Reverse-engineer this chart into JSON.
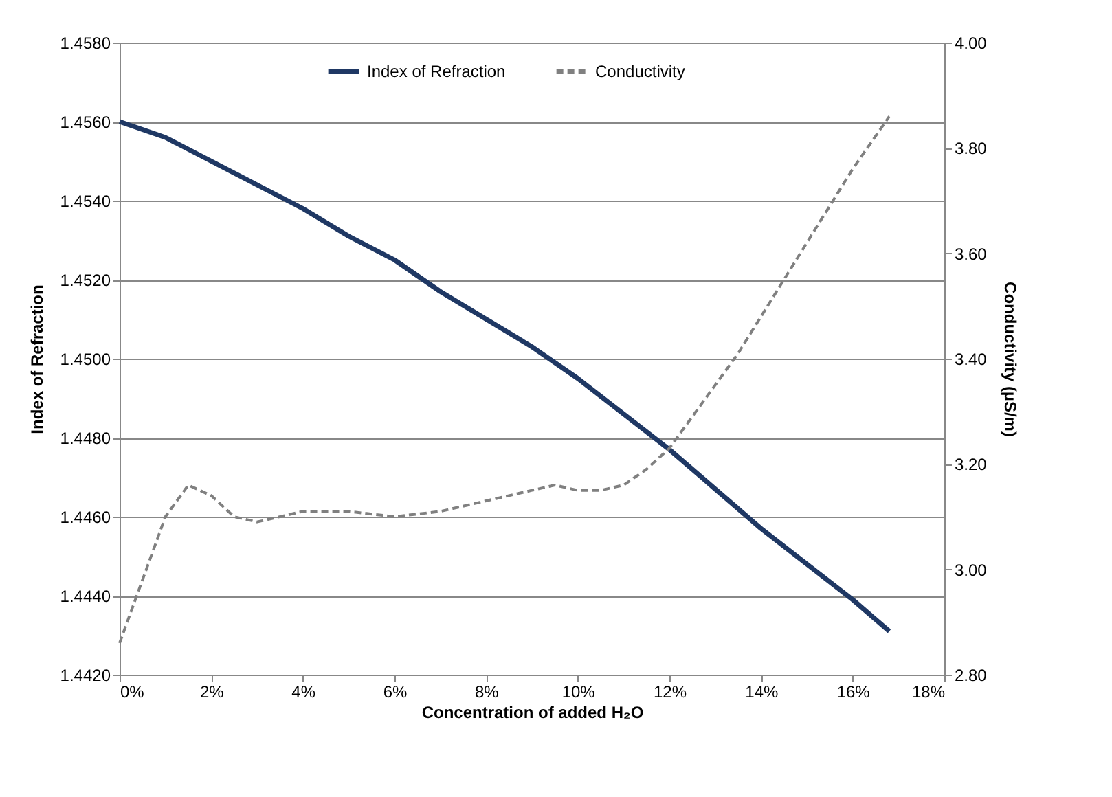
{
  "chart_data": {
    "type": "line",
    "xlabel": "Concentration of added H₂O",
    "ylabel": "Index of Refraction",
    "y2label": "Conductivity (µS/m)",
    "xlim": [
      0,
      18
    ],
    "xticks": [
      {
        "value": 0,
        "label": "0%"
      },
      {
        "value": 2,
        "label": "2%"
      },
      {
        "value": 4,
        "label": "4%"
      },
      {
        "value": 6,
        "label": "6%"
      },
      {
        "value": 8,
        "label": "8%"
      },
      {
        "value": 10,
        "label": "10%"
      },
      {
        "value": 12,
        "label": "12%"
      },
      {
        "value": 14,
        "label": "14%"
      },
      {
        "value": 16,
        "label": "16%"
      },
      {
        "value": 18,
        "label": "18%"
      }
    ],
    "ylim": [
      1.442,
      1.458
    ],
    "yticks": [
      {
        "value": 1.442,
        "label": "1.4420"
      },
      {
        "value": 1.444,
        "label": "1.4440"
      },
      {
        "value": 1.446,
        "label": "1.4460"
      },
      {
        "value": 1.448,
        "label": "1.4480"
      },
      {
        "value": 1.45,
        "label": "1.4500"
      },
      {
        "value": 1.452,
        "label": "1.4520"
      },
      {
        "value": 1.454,
        "label": "1.4540"
      },
      {
        "value": 1.456,
        "label": "1.4560"
      },
      {
        "value": 1.458,
        "label": "1.4580"
      }
    ],
    "y2lim": [
      2.8,
      4.0
    ],
    "y2ticks": [
      {
        "value": 2.8,
        "label": "2.80"
      },
      {
        "value": 3.0,
        "label": "3.00"
      },
      {
        "value": 3.2,
        "label": "3.20"
      },
      {
        "value": 3.4,
        "label": "3.40"
      },
      {
        "value": 3.6,
        "label": "3.60"
      },
      {
        "value": 3.8,
        "label": "3.80"
      },
      {
        "value": 4.0,
        "label": "4.00"
      }
    ],
    "grid": "y",
    "legend": "top",
    "marker": "none",
    "series": [
      {
        "name": "Index of Refraction",
        "color": "#1f3864",
        "line_style": "solid",
        "x": [
          0,
          1,
          2,
          3,
          4,
          5,
          6,
          7,
          8,
          9,
          10,
          11,
          12,
          13,
          14,
          15,
          16,
          16.8
        ],
        "values": [
          1.456,
          1.4556,
          1.455,
          1.4544,
          1.4538,
          1.4531,
          1.4525,
          1.4517,
          1.451,
          1.4503,
          1.4495,
          1.4486,
          1.4477,
          1.4467,
          1.4457,
          1.4448,
          1.4439,
          1.4431
        ]
      },
      {
        "name": "Conductivity",
        "color": "#808080",
        "line_style": "dashed",
        "axis": "y2",
        "x": [
          0,
          0.5,
          1,
          1.5,
          2,
          2.5,
          3,
          4,
          5,
          6,
          7,
          8,
          9,
          9.5,
          10,
          10.5,
          11,
          11.5,
          12,
          12.5,
          13,
          13.5,
          14,
          14.5,
          15,
          15.5,
          16,
          16.8
        ],
        "values": [
          2.86,
          2.98,
          3.1,
          3.16,
          3.14,
          3.1,
          3.09,
          3.11,
          3.11,
          3.1,
          3.11,
          3.13,
          3.15,
          3.16,
          3.15,
          3.15,
          3.16,
          3.19,
          3.23,
          3.29,
          3.35,
          3.41,
          3.48,
          3.55,
          3.62,
          3.69,
          3.76,
          3.86
        ]
      }
    ]
  }
}
